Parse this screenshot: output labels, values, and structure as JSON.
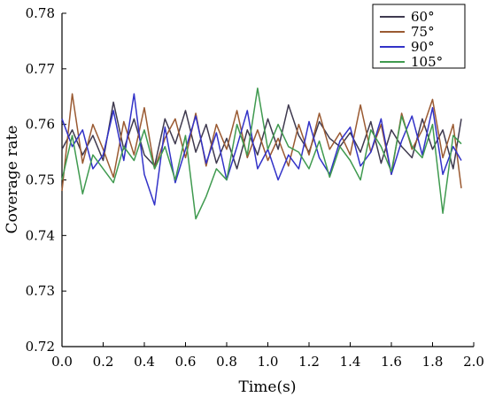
{
  "chart_data": {
    "type": "line",
    "title": "",
    "xlabel": "Time(s)",
    "ylabel": "Coverage rate",
    "xlim": [
      0.0,
      2.0
    ],
    "ylim": [
      0.72,
      0.78
    ],
    "xticks": [
      "0.0",
      "0.2",
      "0.4",
      "0.6",
      "0.8",
      "1.0",
      "1.2",
      "1.4",
      "1.6",
      "1.8",
      "2.0"
    ],
    "yticks": [
      "0.72",
      "0.73",
      "0.74",
      "0.75",
      "0.76",
      "0.77",
      "0.78"
    ],
    "grid": false,
    "legend_position": "top-right",
    "series": [
      {
        "name": "60°",
        "color": "#3f3a4f",
        "x": [
          0.0,
          0.05,
          0.1,
          0.15,
          0.2,
          0.25,
          0.3,
          0.35,
          0.4,
          0.45,
          0.5,
          0.55,
          0.6,
          0.65,
          0.7,
          0.75,
          0.8,
          0.85,
          0.9,
          0.95,
          1.0,
          1.05,
          1.1,
          1.15,
          1.2,
          1.25,
          1.3,
          1.35,
          1.4,
          1.45,
          1.5,
          1.55,
          1.6,
          1.65,
          1.7,
          1.75,
          1.8,
          1.85,
          1.9,
          1.94
        ],
        "values": [
          0.7555,
          0.759,
          0.7545,
          0.758,
          0.7535,
          0.764,
          0.7555,
          0.761,
          0.7545,
          0.7525,
          0.761,
          0.7565,
          0.7625,
          0.755,
          0.76,
          0.753,
          0.7575,
          0.752,
          0.759,
          0.7545,
          0.761,
          0.7555,
          0.7635,
          0.758,
          0.755,
          0.7605,
          0.7575,
          0.756,
          0.7585,
          0.755,
          0.7605,
          0.753,
          0.759,
          0.756,
          0.754,
          0.761,
          0.7555,
          0.759,
          0.752,
          0.761
        ]
      },
      {
        "name": "75°",
        "color": "#9a5a32",
        "x": [
          0.0,
          0.05,
          0.1,
          0.15,
          0.2,
          0.25,
          0.3,
          0.35,
          0.4,
          0.45,
          0.5,
          0.55,
          0.6,
          0.65,
          0.7,
          0.75,
          0.8,
          0.85,
          0.9,
          0.95,
          1.0,
          1.05,
          1.1,
          1.15,
          1.2,
          1.25,
          1.3,
          1.35,
          1.4,
          1.45,
          1.5,
          1.55,
          1.6,
          1.65,
          1.7,
          1.75,
          1.8,
          1.85,
          1.9,
          1.94
        ],
        "values": [
          0.748,
          0.7655,
          0.753,
          0.76,
          0.7555,
          0.7505,
          0.7605,
          0.7545,
          0.763,
          0.752,
          0.7575,
          0.761,
          0.754,
          0.762,
          0.7525,
          0.76,
          0.7555,
          0.7625,
          0.754,
          0.759,
          0.7535,
          0.7575,
          0.7525,
          0.76,
          0.7545,
          0.762,
          0.7555,
          0.7585,
          0.7545,
          0.7635,
          0.755,
          0.76,
          0.751,
          0.762,
          0.7555,
          0.759,
          0.7645,
          0.754,
          0.76,
          0.7485
        ]
      },
      {
        "name": "90°",
        "color": "#3232c8",
        "x": [
          0.0,
          0.05,
          0.1,
          0.15,
          0.2,
          0.25,
          0.3,
          0.35,
          0.4,
          0.45,
          0.5,
          0.55,
          0.6,
          0.65,
          0.7,
          0.75,
          0.8,
          0.85,
          0.9,
          0.95,
          1.0,
          1.05,
          1.1,
          1.15,
          1.2,
          1.25,
          1.3,
          1.35,
          1.4,
          1.45,
          1.5,
          1.55,
          1.6,
          1.65,
          1.7,
          1.75,
          1.8,
          1.85,
          1.9,
          1.94
        ],
        "values": [
          0.761,
          0.756,
          0.759,
          0.752,
          0.7545,
          0.7625,
          0.7535,
          0.7655,
          0.751,
          0.7455,
          0.7595,
          0.7495,
          0.7555,
          0.7615,
          0.753,
          0.7585,
          0.75,
          0.756,
          0.7625,
          0.752,
          0.7555,
          0.75,
          0.7545,
          0.752,
          0.7605,
          0.754,
          0.751,
          0.757,
          0.7595,
          0.7525,
          0.755,
          0.761,
          0.751,
          0.757,
          0.7615,
          0.7545,
          0.763,
          0.751,
          0.756,
          0.7535
        ]
      },
      {
        "name": "105°",
        "color": "#3f9a4f",
        "x": [
          0.0,
          0.05,
          0.1,
          0.15,
          0.2,
          0.25,
          0.3,
          0.35,
          0.4,
          0.45,
          0.5,
          0.55,
          0.6,
          0.65,
          0.7,
          0.75,
          0.8,
          0.85,
          0.9,
          0.95,
          1.0,
          1.05,
          1.1,
          1.15,
          1.2,
          1.25,
          1.3,
          1.35,
          1.4,
          1.45,
          1.5,
          1.55,
          1.6,
          1.65,
          1.7,
          1.75,
          1.8,
          1.85,
          1.9,
          1.94
        ],
        "values": [
          0.75,
          0.758,
          0.7475,
          0.7545,
          0.752,
          0.7495,
          0.756,
          0.7535,
          0.759,
          0.752,
          0.756,
          0.75,
          0.758,
          0.743,
          0.747,
          0.752,
          0.75,
          0.76,
          0.7545,
          0.7665,
          0.7555,
          0.76,
          0.756,
          0.755,
          0.752,
          0.757,
          0.7505,
          0.756,
          0.7535,
          0.75,
          0.759,
          0.756,
          0.7515,
          0.7615,
          0.756,
          0.754,
          0.76,
          0.744,
          0.758,
          0.7565
        ]
      }
    ]
  }
}
